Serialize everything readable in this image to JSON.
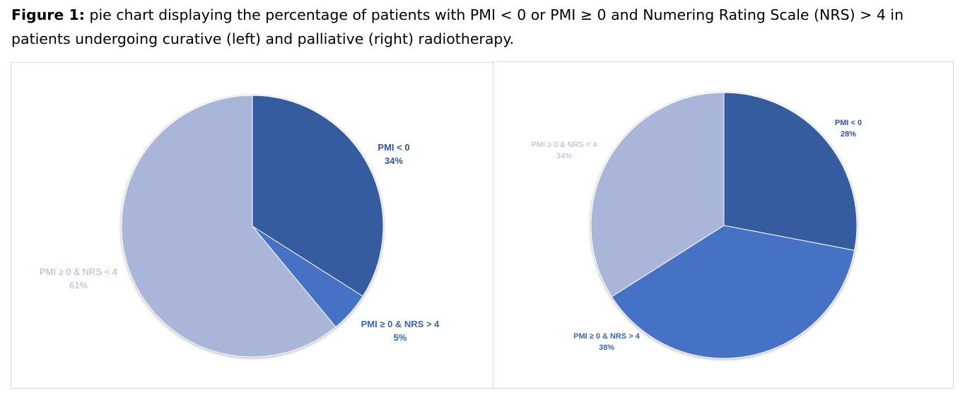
{
  "caption": {
    "label": "Figure 1:",
    "text": " pie chart displaying the percentage of patients with PMI < 0 or PMI ≥ 0 and Numering Rating Scale (NRS) > 4 in patients undergoing curative (left) and palliative (right) radiotherapy."
  },
  "colors": {
    "dark_blue": "#355c9f",
    "medium_blue": "#4472c4",
    "light_blue": "#a9b6da"
  },
  "chart_data": [
    {
      "type": "pie",
      "title": "",
      "slices": [
        {
          "label": "PMI < 0",
          "value": 34,
          "value_label": "34%",
          "color": "#355c9f"
        },
        {
          "label": "PMI ≥ 0 & NRS > 4",
          "value": 5,
          "value_label": "5%",
          "color": "#4472c4"
        },
        {
          "label": "PMI ≥ 0 & NRS < 4",
          "value": 61,
          "value_label": "61%",
          "color": "#a9b6da"
        }
      ],
      "legend": "none"
    },
    {
      "type": "pie",
      "title": "",
      "slices": [
        {
          "label": "PMI < 0",
          "value": 28,
          "value_label": "28%",
          "color": "#355c9f"
        },
        {
          "label": "PMI ≥ 0 & NRS > 4",
          "value": 38,
          "value_label": "38%",
          "color": "#4472c4"
        },
        {
          "label": "PMI ≥ 0 & NRS < 4",
          "value": 34,
          "value_label": "34%",
          "color": "#a9b6da"
        }
      ],
      "legend": "none"
    }
  ]
}
